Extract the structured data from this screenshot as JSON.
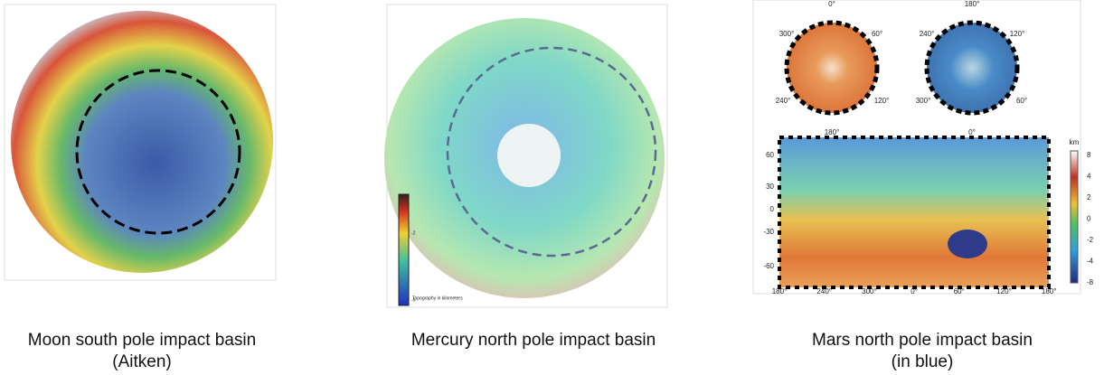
{
  "panels": [
    {
      "caption": [
        "Moon south pole impact basin",
        "(Aitken)"
      ]
    },
    {
      "caption": [
        "Mercury north pole impact basin"
      ],
      "colorbar_ticks": [
        "-2",
        "-6"
      ],
      "colorbar_label": "Topography in kilometers"
    },
    {
      "caption": [
        "Mars north pole impact basin",
        "(in blue)"
      ],
      "globe_left_labels": [
        "0°",
        "60°",
        "120°",
        "180°",
        "240°",
        "300°"
      ],
      "globe_right_labels": [
        "180°",
        "120°",
        "60°",
        "0°",
        "300°",
        "240°"
      ],
      "map_y_labels": [
        "60",
        "30",
        "0",
        "-30",
        "-60"
      ],
      "map_x_labels": [
        "180°",
        "240°",
        "300°",
        "0°",
        "60°",
        "120°",
        "180°"
      ],
      "colorbar_unit": "km",
      "colorbar_ticks": [
        "8",
        "4",
        "2",
        "0",
        "-2",
        "-4",
        "-8"
      ]
    }
  ]
}
